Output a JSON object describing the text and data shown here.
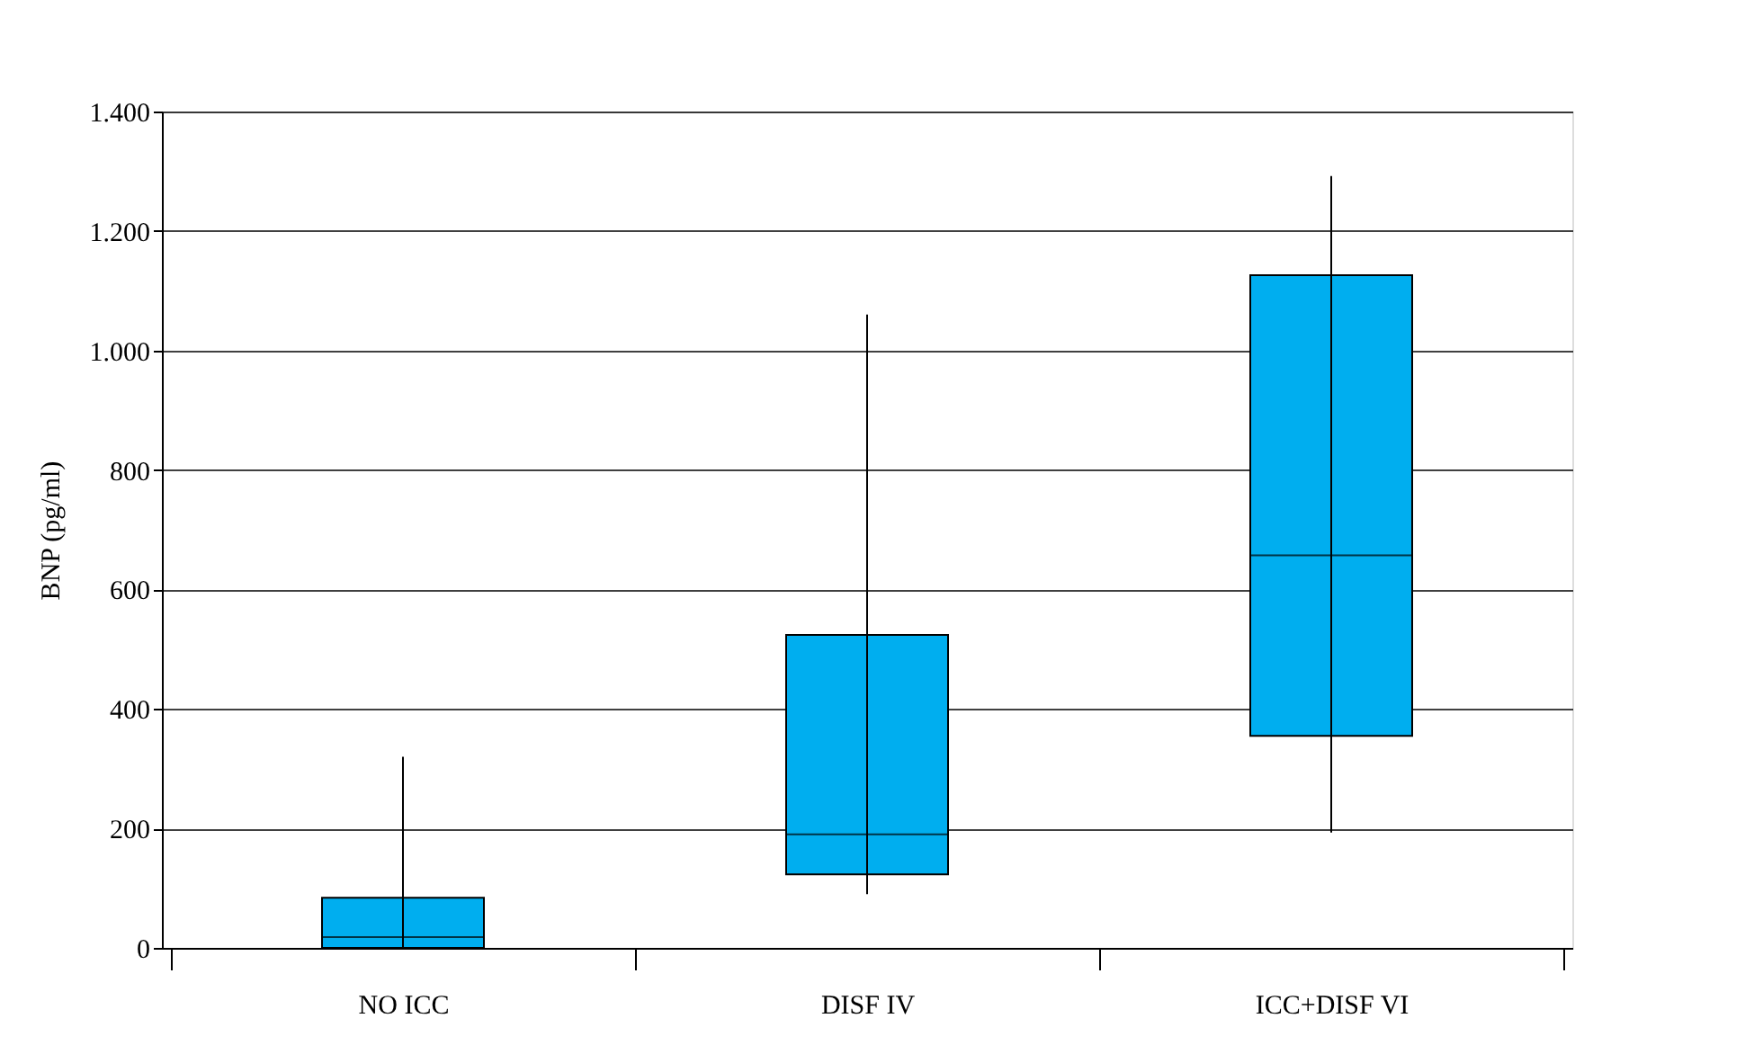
{
  "chart_data": {
    "type": "box",
    "ylabel": "BNP (pg/ml)",
    "categories": [
      "NO ICC",
      "DISF IV",
      "ICC+DISF VI"
    ],
    "boxes": [
      {
        "low": 0,
        "q1": 0,
        "median": 18,
        "q3": 84,
        "high": 320
      },
      {
        "low": 90,
        "q1": 123,
        "median": 190,
        "q3": 524,
        "high": 1060
      },
      {
        "low": 193,
        "q1": 355,
        "median": 657,
        "q3": 1126,
        "high": 1292
      }
    ],
    "color": "#00aeef",
    "ylim": [
      0,
      1400
    ],
    "yticks": [
      0,
      200,
      400,
      600,
      800,
      {
        "value": 1000,
        "label": "1.000"
      },
      {
        "value": 1200,
        "label": "1.200"
      },
      {
        "value": 1400,
        "label": "1.400"
      }
    ],
    "grid": "y"
  }
}
